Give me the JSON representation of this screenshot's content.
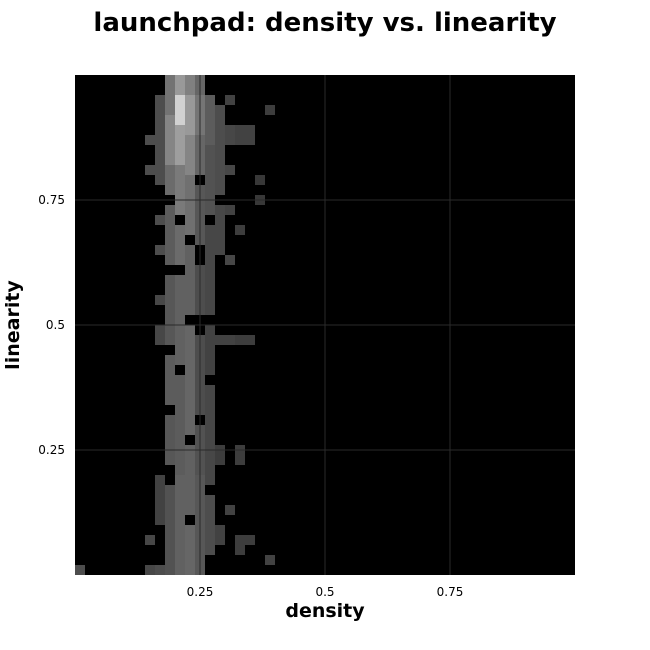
{
  "chart_data": {
    "type": "heatmap",
    "title": "launchpad: density vs. linearity",
    "xlabel": "density",
    "ylabel": "linearity",
    "xlim": [
      0,
      1
    ],
    "ylim": [
      0,
      1
    ],
    "x_ticks": [
      {
        "value": 0.25,
        "label": "0.25"
      },
      {
        "value": 0.5,
        "label": "0.5"
      },
      {
        "value": 0.75,
        "label": "0.75"
      }
    ],
    "y_ticks": [
      {
        "value": 0.25,
        "label": "0.25"
      },
      {
        "value": 0.5,
        "label": "0.5"
      },
      {
        "value": 0.75,
        "label": "0.75"
      }
    ],
    "grid": true,
    "background": "#000000",
    "grid_color": "#2a2a2a",
    "colormap": "grayscale",
    "bins": {
      "x": 50,
      "y": 50
    },
    "columns": [
      {
        "x_start": 0.0,
        "x_end": 0.02,
        "rows": [
          [
            0.0,
            0.02,
            0.3
          ]
        ]
      },
      {
        "x_start": 0.14,
        "x_end": 0.16,
        "rows": [
          [
            0.0,
            0.02,
            0.28
          ],
          [
            0.06,
            0.08,
            0.28
          ],
          [
            0.8,
            0.82,
            0.3
          ],
          [
            0.86,
            0.88,
            0.3
          ]
        ]
      },
      {
        "x_start": 0.16,
        "x_end": 0.18,
        "rows": [
          [
            0.0,
            0.02,
            0.3
          ],
          [
            0.1,
            0.2,
            0.26
          ],
          [
            0.46,
            0.5,
            0.28
          ],
          [
            0.54,
            0.56,
            0.28
          ],
          [
            0.64,
            0.66,
            0.3
          ],
          [
            0.7,
            0.72,
            0.3
          ],
          [
            0.78,
            0.96,
            0.3
          ]
        ]
      },
      {
        "x_start": 0.18,
        "x_end": 0.2,
        "rows": [
          [
            0.0,
            0.18,
            0.32
          ],
          [
            0.22,
            0.32,
            0.34
          ],
          [
            0.34,
            0.44,
            0.36
          ],
          [
            0.46,
            0.6,
            0.34
          ],
          [
            0.62,
            0.74,
            0.36
          ],
          [
            0.76,
            0.82,
            0.42
          ],
          [
            0.82,
            0.92,
            0.52
          ],
          [
            0.92,
            1.0,
            0.45
          ]
        ]
      },
      {
        "x_start": 0.2,
        "x_end": 0.22,
        "rows": [
          [
            0.0,
            0.2,
            0.38
          ],
          [
            0.2,
            0.4,
            0.36
          ],
          [
            0.42,
            0.6,
            0.38
          ],
          [
            0.62,
            0.7,
            0.42
          ],
          [
            0.72,
            0.82,
            0.48
          ],
          [
            0.82,
            0.9,
            0.62
          ],
          [
            0.9,
            0.96,
            0.82
          ],
          [
            0.96,
            1.0,
            0.6
          ]
        ]
      },
      {
        "x_start": 0.22,
        "x_end": 0.24,
        "rows": [
          [
            0.0,
            0.1,
            0.4
          ],
          [
            0.12,
            0.26,
            0.38
          ],
          [
            0.28,
            0.5,
            0.4
          ],
          [
            0.52,
            0.66,
            0.38
          ],
          [
            0.68,
            0.8,
            0.44
          ],
          [
            0.8,
            0.88,
            0.52
          ],
          [
            0.88,
            0.96,
            0.6
          ],
          [
            0.96,
            1.0,
            0.5
          ]
        ]
      },
      {
        "x_start": 0.24,
        "x_end": 0.26,
        "rows": [
          [
            0.0,
            0.2,
            0.34
          ],
          [
            0.2,
            0.3,
            0.32
          ],
          [
            0.32,
            0.48,
            0.3
          ],
          [
            0.52,
            0.62,
            0.3
          ],
          [
            0.66,
            0.78,
            0.34
          ],
          [
            0.8,
            0.88,
            0.4
          ],
          [
            0.88,
            0.96,
            0.46
          ],
          [
            0.96,
            1.0,
            0.4
          ]
        ]
      },
      {
        "x_start": 0.26,
        "x_end": 0.28,
        "rows": [
          [
            0.04,
            0.16,
            0.3
          ],
          [
            0.18,
            0.38,
            0.28
          ],
          [
            0.4,
            0.5,
            0.26
          ],
          [
            0.52,
            0.7,
            0.28
          ],
          [
            0.72,
            0.86,
            0.32
          ],
          [
            0.86,
            0.96,
            0.36
          ]
        ]
      },
      {
        "x_start": 0.28,
        "x_end": 0.3,
        "rows": [
          [
            0.06,
            0.1,
            0.26
          ],
          [
            0.22,
            0.26,
            0.24
          ],
          [
            0.46,
            0.48,
            0.26
          ],
          [
            0.64,
            0.74,
            0.28
          ],
          [
            0.76,
            0.86,
            0.3
          ],
          [
            0.86,
            0.94,
            0.3
          ]
        ]
      },
      {
        "x_start": 0.3,
        "x_end": 0.32,
        "rows": [
          [
            0.12,
            0.14,
            0.26
          ],
          [
            0.46,
            0.48,
            0.26
          ],
          [
            0.62,
            0.64,
            0.28
          ],
          [
            0.72,
            0.74,
            0.26
          ],
          [
            0.8,
            0.82,
            0.28
          ],
          [
            0.86,
            0.9,
            0.28
          ],
          [
            0.94,
            0.96,
            0.26
          ]
        ]
      },
      {
        "x_start": 0.32,
        "x_end": 0.34,
        "rows": [
          [
            0.04,
            0.08,
            0.24
          ],
          [
            0.22,
            0.26,
            0.24
          ],
          [
            0.46,
            0.48,
            0.24
          ],
          [
            0.68,
            0.7,
            0.24
          ],
          [
            0.86,
            0.9,
            0.26
          ]
        ]
      },
      {
        "x_start": 0.34,
        "x_end": 0.36,
        "rows": [
          [
            0.06,
            0.08,
            0.24
          ],
          [
            0.46,
            0.48,
            0.24
          ],
          [
            0.86,
            0.9,
            0.26
          ]
        ]
      },
      {
        "x_start": 0.36,
        "x_end": 0.38,
        "rows": [
          [
            0.74,
            0.76,
            0.22
          ],
          [
            0.78,
            0.8,
            0.22
          ]
        ]
      },
      {
        "x_start": 0.38,
        "x_end": 0.4,
        "rows": [
          [
            0.02,
            0.04,
            0.26
          ],
          [
            0.92,
            0.94,
            0.24
          ]
        ]
      }
    ]
  }
}
